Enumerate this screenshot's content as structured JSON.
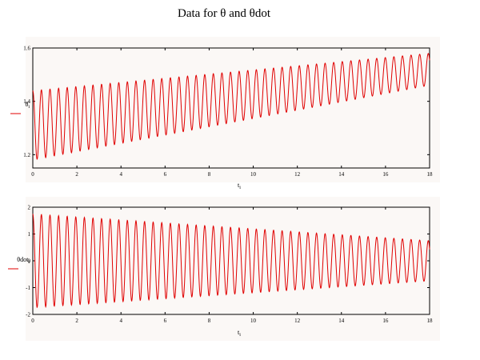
{
  "title": "Data for θ and θdot",
  "colors": {
    "series": "#e00000",
    "panel_bg": "#fbf8f6",
    "axis": "#000000"
  },
  "chart_data": [
    {
      "type": "line",
      "xlabel": "t_i",
      "ylabel": "θ_i",
      "xlim": [
        0,
        18
      ],
      "ylim": [
        1.15,
        1.6
      ],
      "xticks": [
        0,
        2,
        4,
        6,
        8,
        10,
        12,
        14,
        16,
        18
      ],
      "yticks": [
        1.2,
        1.4,
        1.6
      ],
      "grid": false,
      "series": [
        {
          "generator": "damped_oscillation",
          "x_range": [
            0,
            18
          ],
          "period": 0.39,
          "mean": [
            1.31,
            1.52
          ],
          "amplitude": [
            0.13,
            0.06
          ]
        }
      ]
    },
    {
      "type": "line",
      "xlabel": "t_i",
      "ylabel": "θdot_i",
      "xlim": [
        0,
        18
      ],
      "ylim": [
        -2,
        2
      ],
      "xticks": [
        0,
        2,
        4,
        6,
        8,
        10,
        12,
        14,
        16,
        18
      ],
      "yticks": [
        -2,
        -1,
        0,
        1,
        2
      ],
      "grid": false,
      "series": [
        {
          "generator": "damped_oscillation",
          "x_range": [
            0,
            18
          ],
          "period": 0.39,
          "mean": [
            0.0,
            0.0
          ],
          "amplitude": [
            1.75,
            0.75
          ]
        }
      ]
    }
  ]
}
